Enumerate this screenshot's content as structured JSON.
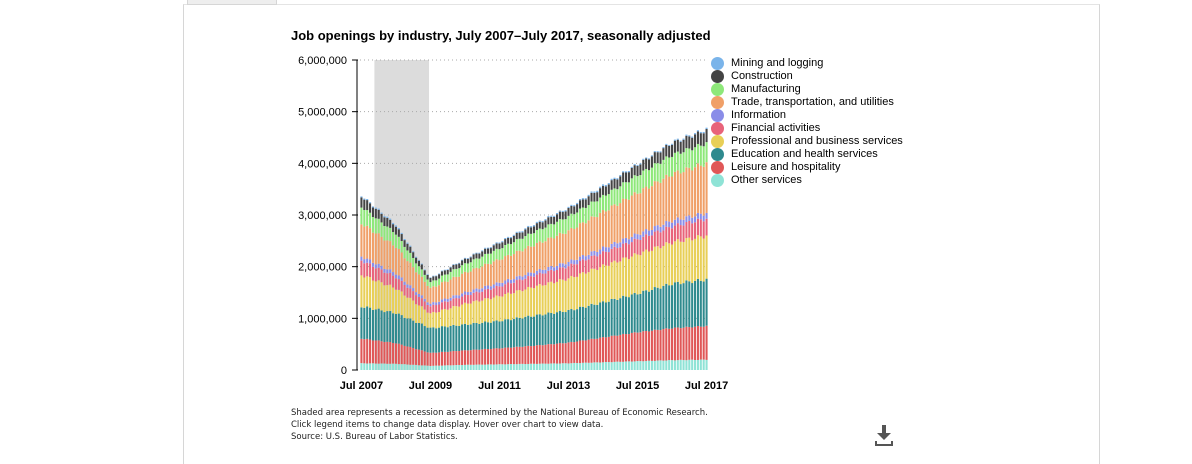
{
  "chart_data": {
    "type": "bar",
    "stacked": true,
    "title": "Job openings by industry, July 2007–July 2017, seasonally adjusted",
    "ylim": [
      0,
      6000000
    ],
    "y_ticks": [
      0,
      1000000,
      2000000,
      3000000,
      4000000,
      5000000,
      6000000
    ],
    "y_tick_labels": [
      "0",
      "1,000,000",
      "2,000,000",
      "3,000,000",
      "4,000,000",
      "5,000,000",
      "6,000,000"
    ],
    "x_tick_labels": [
      "Jul 2007",
      "Jul 2009",
      "Jul 2011",
      "Jul 2013",
      "Jul 2015",
      "Jul 2017"
    ],
    "x_start": "Jul 2007",
    "x_end": "Jul 2017",
    "frequency": "monthly",
    "recession": {
      "start": "Dec 2007",
      "end": "Jun 2009"
    },
    "grid": "horizontal dotted",
    "legend_position": "right",
    "anchors": [
      "Jul 2007",
      "Jul 2008",
      "Jul 2009",
      "Jul 2010",
      "Jul 2011",
      "Jul 2012",
      "Jul 2013",
      "Jul 2014",
      "Jul 2015",
      "Jul 2016",
      "Jul 2017"
    ],
    "series": [
      {
        "name": "Other services",
        "color": "#8fe3d6",
        "values": [
          130000,
          120000,
          80000,
          100000,
          110000,
          120000,
          130000,
          150000,
          170000,
          190000,
          200000
        ]
      },
      {
        "name": "Leisure and hospitality",
        "color": "#e05757",
        "values": [
          480000,
          400000,
          250000,
          280000,
          310000,
          350000,
          400000,
          480000,
          560000,
          620000,
          650000
        ]
      },
      {
        "name": "Education and health services",
        "color": "#2f8a8e",
        "values": [
          620000,
          580000,
          480000,
          500000,
          530000,
          580000,
          620000,
          680000,
          750000,
          860000,
          900000
        ]
      },
      {
        "name": "Professional and business services",
        "color": "#e8cf57",
        "values": [
          610000,
          480000,
          280000,
          400000,
          480000,
          560000,
          620000,
          700000,
          760000,
          800000,
          850000
        ]
      },
      {
        "name": "Financial activities",
        "color": "#e8637a",
        "values": [
          280000,
          220000,
          140000,
          160000,
          190000,
          220000,
          240000,
          260000,
          290000,
          310000,
          330000
        ]
      },
      {
        "name": "Information",
        "color": "#8a8de8",
        "values": [
          80000,
          70000,
          50000,
          60000,
          70000,
          70000,
          80000,
          90000,
          100000,
          110000,
          110000
        ]
      },
      {
        "name": "Trade, transportation, and utilities",
        "color": "#f0a068",
        "values": [
          640000,
          520000,
          300000,
          380000,
          450000,
          520000,
          600000,
          700000,
          800000,
          900000,
          960000
        ]
      },
      {
        "name": "Manufacturing",
        "color": "#8ee87a",
        "values": [
          320000,
          250000,
          110000,
          170000,
          210000,
          250000,
          280000,
          300000,
          340000,
          370000,
          390000
        ]
      },
      {
        "name": "Construction",
        "color": "#444444",
        "values": [
          200000,
          150000,
          80000,
          90000,
          110000,
          130000,
          150000,
          180000,
          200000,
          230000,
          250000
        ]
      },
      {
        "name": "Mining and logging",
        "color": "#7ab4ea",
        "values": [
          20000,
          25000,
          12000,
          15000,
          20000,
          24000,
          22000,
          28000,
          20000,
          20000,
          25000
        ]
      }
    ]
  },
  "legend_order": [
    "Mining and logging",
    "Construction",
    "Manufacturing",
    "Trade, transportation, and utilities",
    "Information",
    "Financial activities",
    "Professional and business services",
    "Education and health services",
    "Leisure and hospitality",
    "Other services"
  ],
  "footnotes": {
    "line1": "Shaded area represents a recession as determined by the National Bureau of Economic Research.",
    "line2": "Click legend items to change data display. Hover over chart to view data.",
    "line3": "Source: U.S. Bureau of Labor Statistics."
  },
  "icons": {
    "download": "download-icon"
  }
}
